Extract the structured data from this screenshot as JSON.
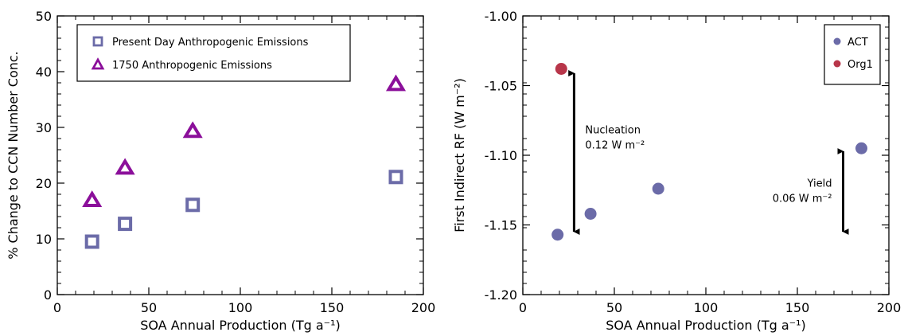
{
  "chart_data": [
    {
      "type": "scatter",
      "xlabel": "SOA Annual Production (Tg a⁻¹)",
      "ylabel": "% Change to CCN Number Conc.",
      "xlim": [
        0,
        200
      ],
      "ylim": [
        0,
        50
      ],
      "xticks": [
        0,
        50,
        100,
        150,
        200
      ],
      "yticks": [
        0,
        10,
        20,
        30,
        40,
        50
      ],
      "xtick_labels": [
        "0",
        "50",
        "100",
        "150",
        "200"
      ],
      "ytick_labels": [
        "0",
        "10",
        "20",
        "30",
        "40",
        "50"
      ],
      "legend_position": "top-left",
      "grid": false,
      "series": [
        {
          "name": "Present Day Anthropogenic Emissions",
          "marker": "square-open",
          "color": "#6b6ba8",
          "x": [
            19,
            37,
            74,
            185
          ],
          "y": [
            9.5,
            12.7,
            16.1,
            21.1
          ]
        },
        {
          "name": "1750 Anthropogenic Emissions",
          "marker": "triangle-open",
          "color": "#8b0f9a",
          "x": [
            19,
            37,
            74,
            185
          ],
          "y": [
            17.0,
            22.8,
            29.4,
            37.8
          ]
        }
      ]
    },
    {
      "type": "scatter",
      "xlabel": "SOA Annual Production (Tg a⁻¹)",
      "ylabel": "First Indirect RF (W m⁻²)",
      "xlim": [
        0,
        200
      ],
      "ylim": [
        -1.2,
        -1.0
      ],
      "xticks": [
        0,
        50,
        100,
        150,
        200
      ],
      "yticks": [
        -1.2,
        -1.15,
        -1.1,
        -1.05,
        -1.0
      ],
      "xtick_labels": [
        "0",
        "50",
        "100",
        "150",
        "200"
      ],
      "ytick_labels": [
        "-1.20",
        "-1.15",
        "-1.10",
        "-1.05",
        "-1.00"
      ],
      "legend_position": "top-right",
      "grid": false,
      "series": [
        {
          "name": "ACT",
          "marker": "circle-filled",
          "color": "#6b6ba8",
          "x": [
            19,
            37,
            74,
            185
          ],
          "y": [
            -1.157,
            -1.142,
            -1.124,
            -1.095
          ]
        },
        {
          "name": "Org1",
          "marker": "circle-filled",
          "color": "#b8364a",
          "x": [
            21
          ],
          "y": [
            -1.038
          ]
        }
      ],
      "annotations": [
        {
          "kind": "double-arrow",
          "x": 28,
          "y_from": -1.04,
          "y_to": -1.156,
          "label_lines": [
            "Nucleation",
            "0.12 W m⁻²"
          ]
        },
        {
          "kind": "double-arrow",
          "x": 175,
          "y_from": -1.096,
          "y_to": -1.156,
          "label_lines": [
            "Yield",
            "0.06 W m⁻²"
          ]
        }
      ]
    }
  ]
}
